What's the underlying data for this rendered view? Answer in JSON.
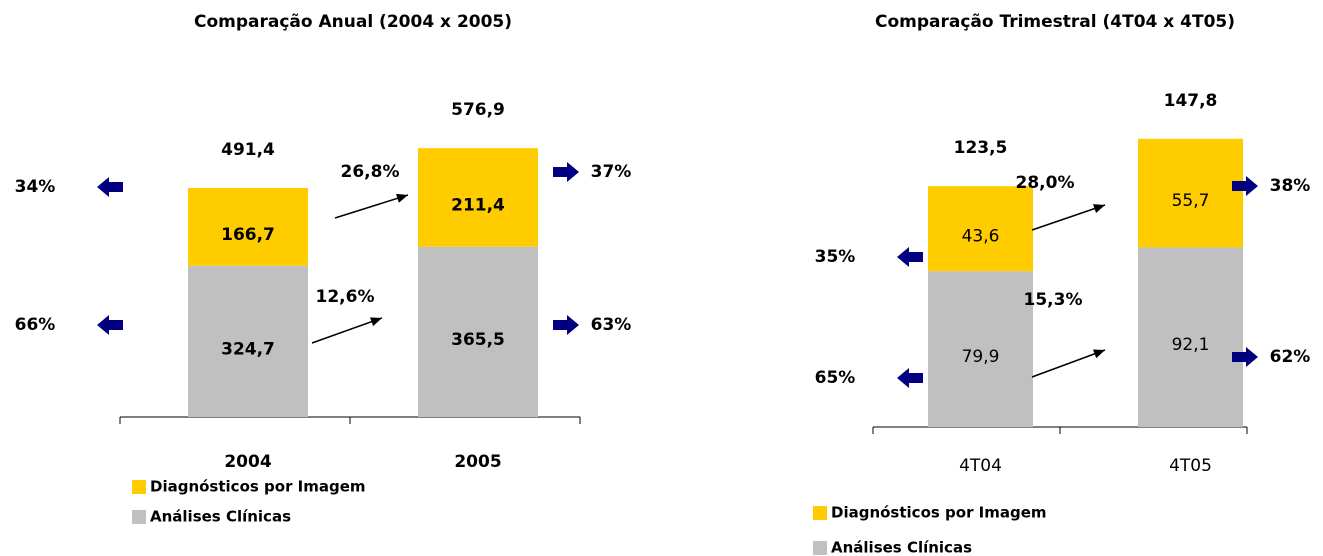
{
  "chart_data": [
    {
      "type": "bar",
      "stacked": true,
      "title": "Comparação Anual (2004 x 2005)",
      "categories": [
        "2004",
        "2005"
      ],
      "series": [
        {
          "name": "Análises Clínicas",
          "color": "#c0c0c0",
          "values": [
            324.7,
            365.5
          ],
          "value_labels": [
            "324,7",
            "365,5"
          ],
          "growth": "12,6%",
          "shares": [
            66,
            63
          ],
          "share_labels": [
            "66%",
            "63%"
          ]
        },
        {
          "name": "Diagnósticos por Imagem",
          "color": "#ffcc00",
          "values": [
            166.7,
            211.4
          ],
          "value_labels": [
            "166,7",
            "211,4"
          ],
          "growth": "26,8%",
          "shares": [
            34,
            37
          ],
          "share_labels": [
            "34%",
            "37%"
          ]
        }
      ],
      "totals": [
        491.4,
        576.9
      ],
      "total_labels": [
        "491,4",
        "576,9"
      ]
    },
    {
      "type": "bar",
      "stacked": true,
      "title": "Comparação Trimestral (4T04 x 4T05)",
      "categories": [
        "4T04",
        "4T05"
      ],
      "series": [
        {
          "name": "Análises Clínicas",
          "color": "#c0c0c0",
          "values": [
            79.9,
            92.1
          ],
          "value_labels": [
            "79,9",
            "92,1"
          ],
          "growth": "15,3%",
          "shares": [
            65,
            62
          ],
          "share_labels": [
            "65%",
            "62%"
          ]
        },
        {
          "name": "Diagnósticos por Imagem",
          "color": "#ffcc00",
          "values": [
            43.6,
            55.7
          ],
          "value_labels": [
            "43,6",
            "55,7"
          ],
          "growth": "28,0%",
          "shares": [
            35,
            38
          ],
          "share_labels": [
            "35%",
            "38%"
          ]
        }
      ],
      "totals": [
        123.5,
        147.8
      ],
      "total_labels": [
        "123,5",
        "147,8"
      ]
    }
  ]
}
